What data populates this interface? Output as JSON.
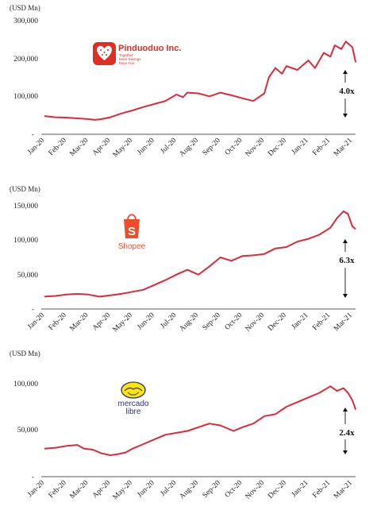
{
  "colors": {
    "line": "#e0293a",
    "axis": "#222222",
    "pinduoduo": "#e02e24",
    "shopee": "#ee4d2d",
    "mercado_yellow": "#ffe600",
    "mercado_blue": "#2d3277"
  },
  "chart_data": [
    {
      "type": "line",
      "company": "Pinduoduo Inc.",
      "logo_text": "Pinduoduo Inc.",
      "logo_tagline": [
        "Together",
        "More Savings",
        "More Fun"
      ],
      "unit_label": "(USD Mn)",
      "yticks": [
        "300,000",
        "200,000",
        "100,000",
        "-"
      ],
      "ylim": [
        0,
        300000
      ],
      "xticks": [
        "Jan-20",
        "Feb-20",
        "Mar-20",
        "Apr-20",
        "May-20",
        "Jun-20",
        "Jul-20",
        "Aug-20",
        "Sep-20",
        "Oct-20",
        "Nov-20",
        "Dec-20",
        "Jan-21",
        "Feb-21",
        "Mar-21"
      ],
      "multiple": "4.0x",
      "x": [
        0,
        0.5,
        1,
        1.5,
        2,
        2.3,
        2.6,
        3,
        3.5,
        4,
        4.5,
        5,
        5.5,
        6,
        6.3,
        6.5,
        7,
        7.5,
        8,
        8.5,
        9,
        9.5,
        10,
        10.2,
        10.5,
        10.8,
        11,
        11.5,
        12,
        12.3,
        12.7,
        13,
        13.2,
        13.5,
        13.7,
        14,
        14.15
      ],
      "values": [
        48000,
        45000,
        44000,
        42000,
        40000,
        38000,
        40000,
        45000,
        55000,
        63000,
        72000,
        80000,
        88000,
        105000,
        98000,
        110000,
        108000,
        100000,
        110000,
        103000,
        95000,
        88000,
        108000,
        150000,
        175000,
        160000,
        180000,
        170000,
        195000,
        175000,
        215000,
        205000,
        235000,
        225000,
        245000,
        230000,
        190000
      ]
    },
    {
      "type": "line",
      "company": "Shopee",
      "logo_text": "Shopee",
      "unit_label": "(USD Mn)",
      "yticks": [
        "150,000",
        "100,000",
        "50,000",
        "-"
      ],
      "ylim": [
        0,
        150000
      ],
      "xticks": [
        "Jan-20",
        "Feb-20",
        "Mar-20",
        "Apr-20",
        "May-20",
        "Jun-20",
        "Jul-20",
        "Aug-20",
        "Sep-20",
        "Oct-20",
        "Nov-20",
        "Dec-20",
        "Jan-21",
        "Feb-21",
        "Mar-21"
      ],
      "multiple": "6.3x",
      "x": [
        0,
        0.5,
        1,
        1.5,
        2,
        2.5,
        3,
        3.5,
        4,
        4.5,
        5,
        5.5,
        6,
        6.5,
        7,
        7.5,
        8,
        8.5,
        9,
        9.5,
        10,
        10.5,
        11,
        11.5,
        12,
        12.5,
        13,
        13.3,
        13.6,
        13.8,
        14,
        14.15
      ],
      "values": [
        18000,
        19000,
        21000,
        22000,
        21000,
        18000,
        20000,
        22000,
        25000,
        28000,
        35000,
        42000,
        50000,
        57000,
        50000,
        62000,
        75000,
        70000,
        77000,
        78000,
        80000,
        88000,
        90000,
        98000,
        102000,
        108000,
        118000,
        132000,
        142000,
        138000,
        120000,
        116000
      ]
    },
    {
      "type": "line",
      "company": "Mercado Libre",
      "logo_text": [
        "mercado",
        "libre"
      ],
      "unit_label": "(USD Mn)",
      "yticks": [
        "100,000",
        "50,000",
        "-"
      ],
      "ylim": [
        0,
        110000
      ],
      "xticks": [
        "Jan-20",
        "Feb-20",
        "Mar-20",
        "Apr-20",
        "May-20",
        "Jun-20",
        "Jul-20",
        "Aug-20",
        "Sep-20",
        "Oct-20",
        "Nov-20",
        "Dec-20",
        "Jan-21",
        "Feb-21",
        "Mar-21"
      ],
      "multiple": "2.4x",
      "x": [
        0,
        0.5,
        1,
        1.5,
        1.8,
        2.2,
        2.6,
        3,
        3.3,
        3.7,
        4,
        4.5,
        5,
        5.5,
        6,
        6.5,
        7,
        7.5,
        8,
        8.3,
        8.6,
        9,
        9.5,
        10,
        10.5,
        11,
        11.5,
        12,
        12.5,
        13,
        13.3,
        13.6,
        13.8,
        14,
        14.15
      ],
      "values": [
        30000,
        31000,
        33000,
        34000,
        30000,
        29000,
        25000,
        23000,
        24000,
        26000,
        30000,
        35000,
        40000,
        45000,
        47000,
        49000,
        53000,
        57000,
        55000,
        52000,
        49000,
        53000,
        57000,
        65000,
        67000,
        75000,
        80000,
        85000,
        90000,
        97000,
        92000,
        95000,
        90000,
        82000,
        72000
      ]
    }
  ]
}
